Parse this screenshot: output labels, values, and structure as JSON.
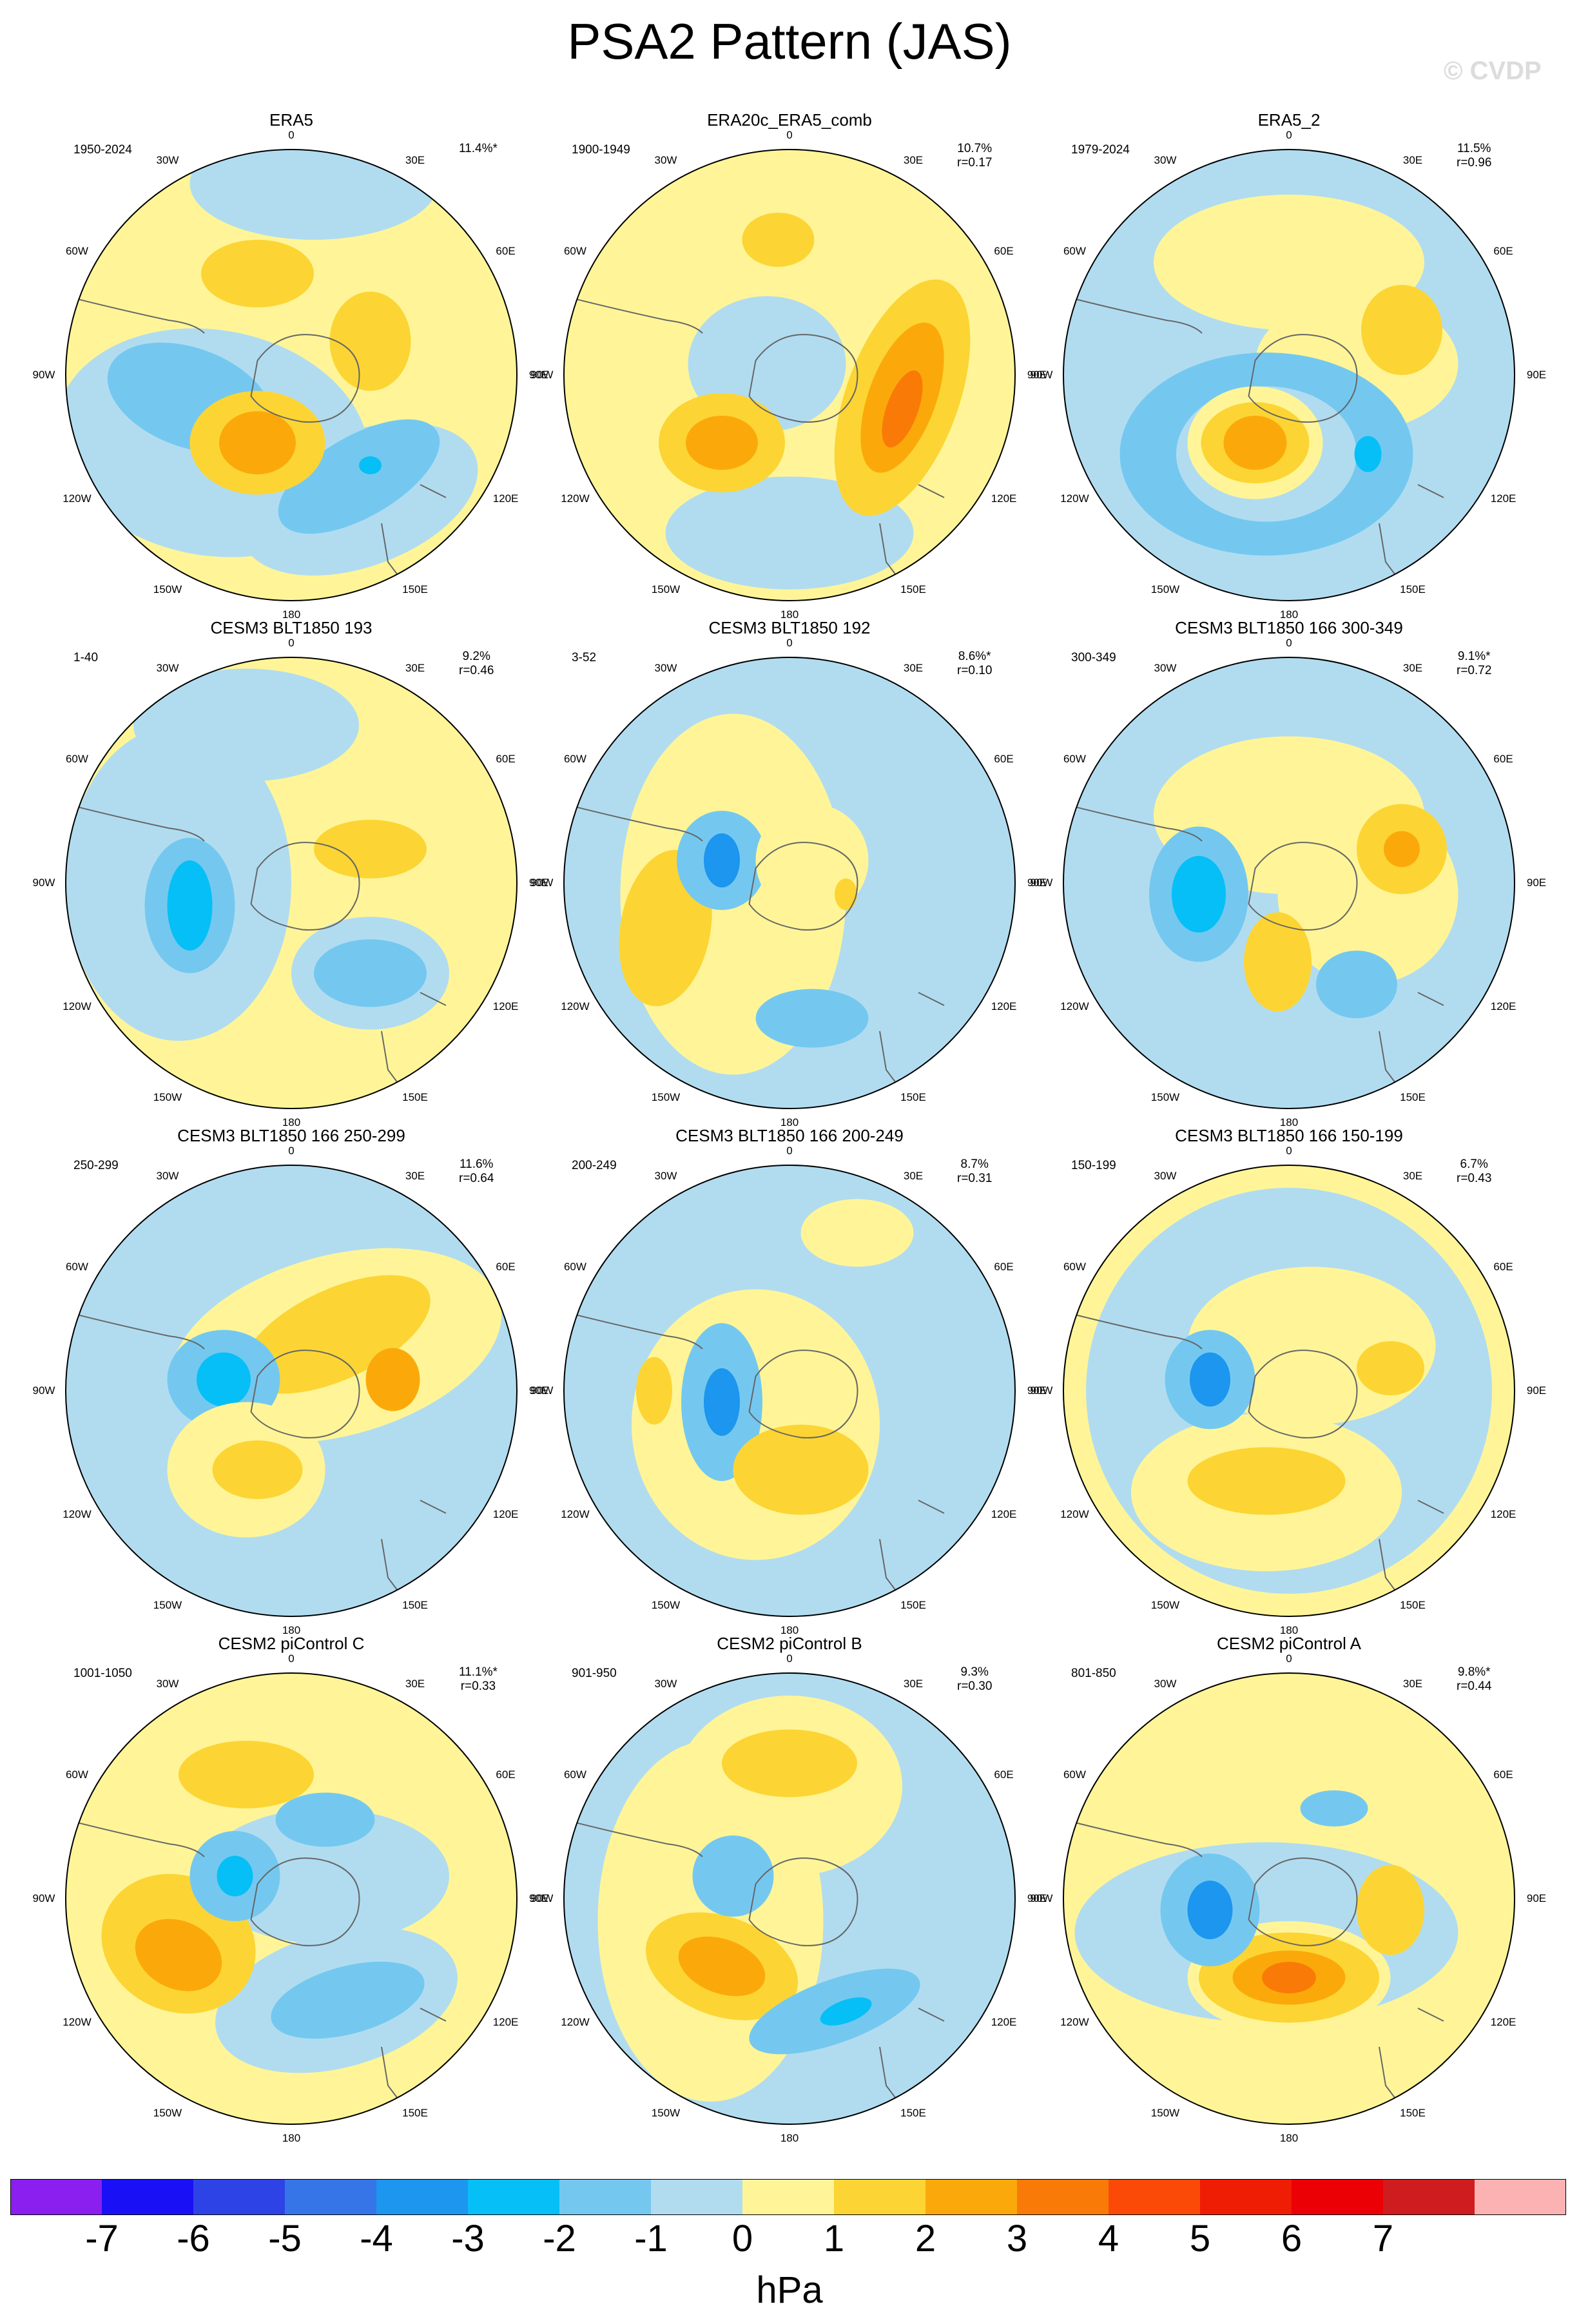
{
  "title": "PSA2 Pattern (JAS)",
  "watermark": "© CVDP",
  "longitude_labels": [
    "0",
    "30E",
    "60E",
    "90E",
    "120E",
    "150E",
    "180",
    "150W",
    "120W",
    "90W",
    "60W",
    "30W"
  ],
  "panels": [
    {
      "title": "ERA5",
      "period": "1950-2024",
      "pct": "11.4%*",
      "r": ""
    },
    {
      "title": "ERA20c_ERA5_comb",
      "period": "1900-1949",
      "pct": "10.7%",
      "r": "r=0.17"
    },
    {
      "title": "ERA5_2",
      "period": "1979-2024",
      "pct": "11.5%",
      "r": "r=0.96"
    },
    {
      "title": "CESM3 BLT1850 193",
      "period": "1-40",
      "pct": "9.2%",
      "r": "r=0.46"
    },
    {
      "title": "CESM3 BLT1850 192",
      "period": "3-52",
      "pct": "8.6%*",
      "r": "r=0.10"
    },
    {
      "title": "CESM3 BLT1850 166 300-349",
      "period": "300-349",
      "pct": "9.1%*",
      "r": "r=0.72"
    },
    {
      "title": "CESM3 BLT1850 166 250-299",
      "period": "250-299",
      "pct": "11.6%",
      "r": "r=0.64"
    },
    {
      "title": "CESM3 BLT1850 166 200-249",
      "period": "200-249",
      "pct": "8.7%",
      "r": "r=0.31"
    },
    {
      "title": "CESM3 BLT1850 166 150-199",
      "period": "150-199",
      "pct": "6.7%",
      "r": "r=0.43"
    },
    {
      "title": "CESM2 piControl C",
      "period": "1001-1050",
      "pct": "11.1%*",
      "r": "r=0.33"
    },
    {
      "title": "CESM2 piControl B",
      "period": "901-950",
      "pct": "9.3%",
      "r": "r=0.30"
    },
    {
      "title": "CESM2 piControl A",
      "period": "801-850",
      "pct": "9.8%*",
      "r": "r=0.44"
    }
  ],
  "colorbar": {
    "colors": [
      "#8a1ff0",
      "#1a10f5",
      "#2e43e5",
      "#3575e8",
      "#1c96ee",
      "#06bff6",
      "#74c8f0",
      "#b1dcf0",
      "#fff598",
      "#fcd534",
      "#fba90a",
      "#fa7a07",
      "#fb4a07",
      "#f01d05",
      "#ea0005",
      "#cf1c1f",
      "#fcb2b2"
    ],
    "labels": [
      "-7",
      "-6",
      "-5",
      "-4",
      "-3",
      "-2",
      "-1",
      "0",
      "1",
      "2",
      "3",
      "4",
      "5",
      "6",
      "7"
    ],
    "units": "hPa"
  }
}
